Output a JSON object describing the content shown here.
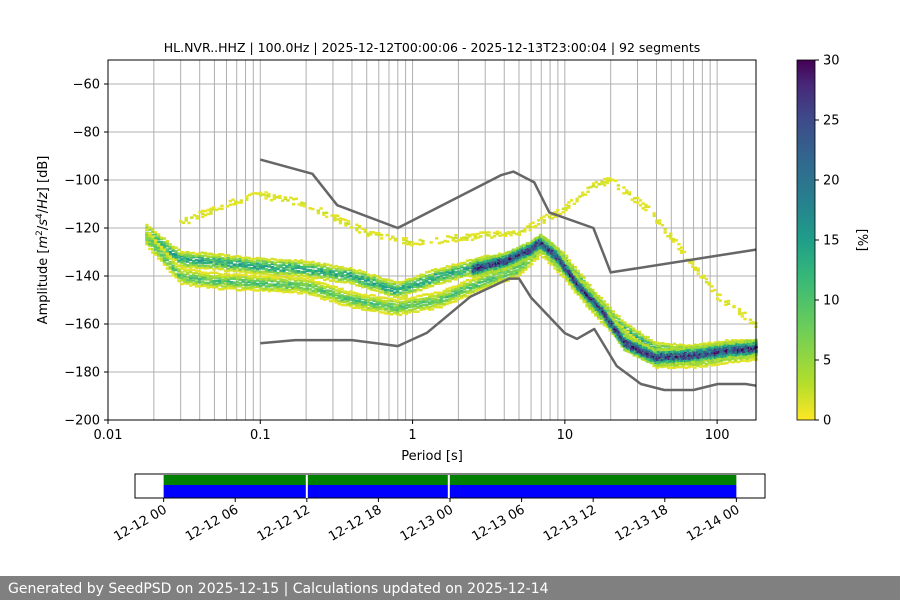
{
  "chart_data": [
    {
      "type": "heatmap",
      "title": "HL.NVR..HHZ | 100.0Hz | 2025-12-12T00:00:06 - 2025-12-13T23:00:04 | 92 segments",
      "xlabel": "Period [s]",
      "ylabel_parts": [
        "Amplitude [",
        "m",
        "2",
        "/",
        "s",
        "4",
        "/",
        "Hz",
        "] [dB]"
      ],
      "x_scale": "log",
      "xlim": [
        0.01,
        180
      ],
      "ylim": [
        -200,
        -50
      ],
      "x_ticks": [
        0.01,
        0.1,
        1,
        10,
        100
      ],
      "x_tick_labels": [
        "0.01",
        "0.1",
        "1",
        "10",
        "100"
      ],
      "y_ticks": [
        -200,
        -180,
        -160,
        -140,
        -120,
        -100,
        -80,
        -60
      ],
      "y_tick_labels": [
        "−200",
        "−180",
        "−160",
        "−140",
        "−120",
        "−100",
        "−80",
        "−60"
      ],
      "grid": "vertical minor log lines",
      "nhnm": {
        "period": [
          0.1,
          0.22,
          0.32,
          0.8,
          3.8,
          4.6,
          6.3,
          7.9,
          15.4,
          20,
          180
        ],
        "db": [
          -91.5,
          -97.4,
          -110.5,
          -120.0,
          -98.0,
          -96.5,
          -101.0,
          -113.5,
          -120.0,
          -138.5,
          -129
        ]
      },
      "nlnm": {
        "period": [
          0.1,
          0.17,
          0.4,
          0.8,
          1.24,
          2.4,
          4.3,
          5.0,
          6.0,
          10.0,
          12.0,
          15.6,
          21.9,
          31.6,
          45.0,
          70.0,
          101.0,
          154.0,
          180.0
        ],
        "db": [
          -168.0,
          -166.7,
          -166.7,
          -169.2,
          -163.7,
          -148.6,
          -141.1,
          -141.1,
          -149.0,
          -163.8,
          -166.2,
          -162.1,
          -177.5,
          -185.0,
          -187.5,
          -187.5,
          -185.0,
          -185.0,
          -185.7
        ]
      },
      "density_paths": [
        {
          "name": "upper-mode",
          "period": [
            0.018,
            0.03,
            0.05,
            0.1,
            0.2,
            0.4,
            0.8,
            1.5,
            3,
            5,
            7,
            10,
            15,
            25,
            40,
            70,
            120,
            180
          ],
          "db": [
            -122,
            -133,
            -134,
            -136,
            -137,
            -140,
            -146,
            -140,
            -135,
            -133,
            -126,
            -134,
            -148,
            -163,
            -171,
            -172,
            -170,
            -170
          ],
          "level": 12
        },
        {
          "name": "lower-mode",
          "period": [
            0.018,
            0.03,
            0.05,
            0.1,
            0.2,
            0.4,
            0.8,
            1.5,
            3,
            5,
            7,
            10,
            15,
            25,
            40,
            70,
            120,
            180
          ],
          "db": [
            -124,
            -140,
            -142,
            -143,
            -144,
            -150,
            -153,
            -150,
            -142,
            -137,
            -128,
            -138,
            -152,
            -166,
            -175,
            -175,
            -173,
            -172
          ],
          "level": 8
        },
        {
          "name": "peak-mode",
          "period": [
            2.5,
            4,
            6,
            7,
            9,
            12,
            18,
            25,
            40,
            70,
            120,
            180
          ],
          "db": [
            -137,
            -134,
            -129,
            -126,
            -132,
            -143,
            -155,
            -168,
            -174,
            -173,
            -171,
            -170
          ],
          "level": 25
        },
        {
          "name": "high-noise-mode",
          "period": [
            0.03,
            0.06,
            0.1,
            0.2,
            0.5,
            1,
            3,
            5,
            10,
            15,
            20,
            35,
            60,
            100,
            180
          ],
          "db": [
            -118,
            -110,
            -106,
            -110,
            -122,
            -126,
            -123,
            -122,
            -112,
            -103,
            -100,
            -112,
            -130,
            -148,
            -160
          ],
          "level": 2
        }
      ],
      "colorbar": {
        "label": "[%]",
        "range": [
          0,
          30
        ],
        "ticks": [
          0,
          5,
          10,
          15,
          20,
          25,
          30
        ],
        "tick_labels": [
          "0",
          "5",
          "10",
          "15",
          "20",
          "25",
          "30"
        ],
        "colormap": "viridis_r"
      }
    },
    {
      "type": "timeline",
      "date_labels": [
        "12-12 00",
        "12-12 06",
        "12-12 12",
        "12-12 18",
        "12-13 00",
        "12-13 06",
        "12-13 12",
        "12-13 18",
        "12-14 00"
      ],
      "xlim_hours": [
        -2.4,
        50.4
      ],
      "data_span_hours": [
        0,
        48
      ],
      "coverage_color": "#008000",
      "segments_color": "#0000ff",
      "gaps_hours": [
        12,
        23.9
      ]
    }
  ],
  "footer": {
    "text": "Generated by SeedPSD on 2025-12-15 | Calculations updated on 2025-12-14"
  },
  "colors": {
    "nm_line": "#666666",
    "grid": "#b0b0b0",
    "footer_bg": "#808080"
  }
}
